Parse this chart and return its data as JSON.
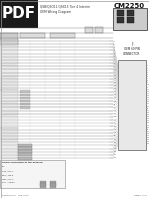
{
  "bg_color": "#ffffff",
  "title_text": "QSB/QSO11 QSX15 Tier 4 Interim\nOEM Wiring Diagram",
  "cm2250_text": "CM2250",
  "pdf_text": "PDF",
  "pdf_bg": "#1a1a1a",
  "pdf_fg": "#ffffff",
  "j3_text": "J3\nOEM 60 PIN\nCONNECTOR",
  "revision_text": "Revision 8.0   APR 2014",
  "page_text": "Page 1 of 9",
  "wire_gray": "#aaaaaa",
  "dark_gray": "#555555",
  "med_gray": "#888888",
  "light_gray": "#cccccc",
  "border_col": "#777777"
}
